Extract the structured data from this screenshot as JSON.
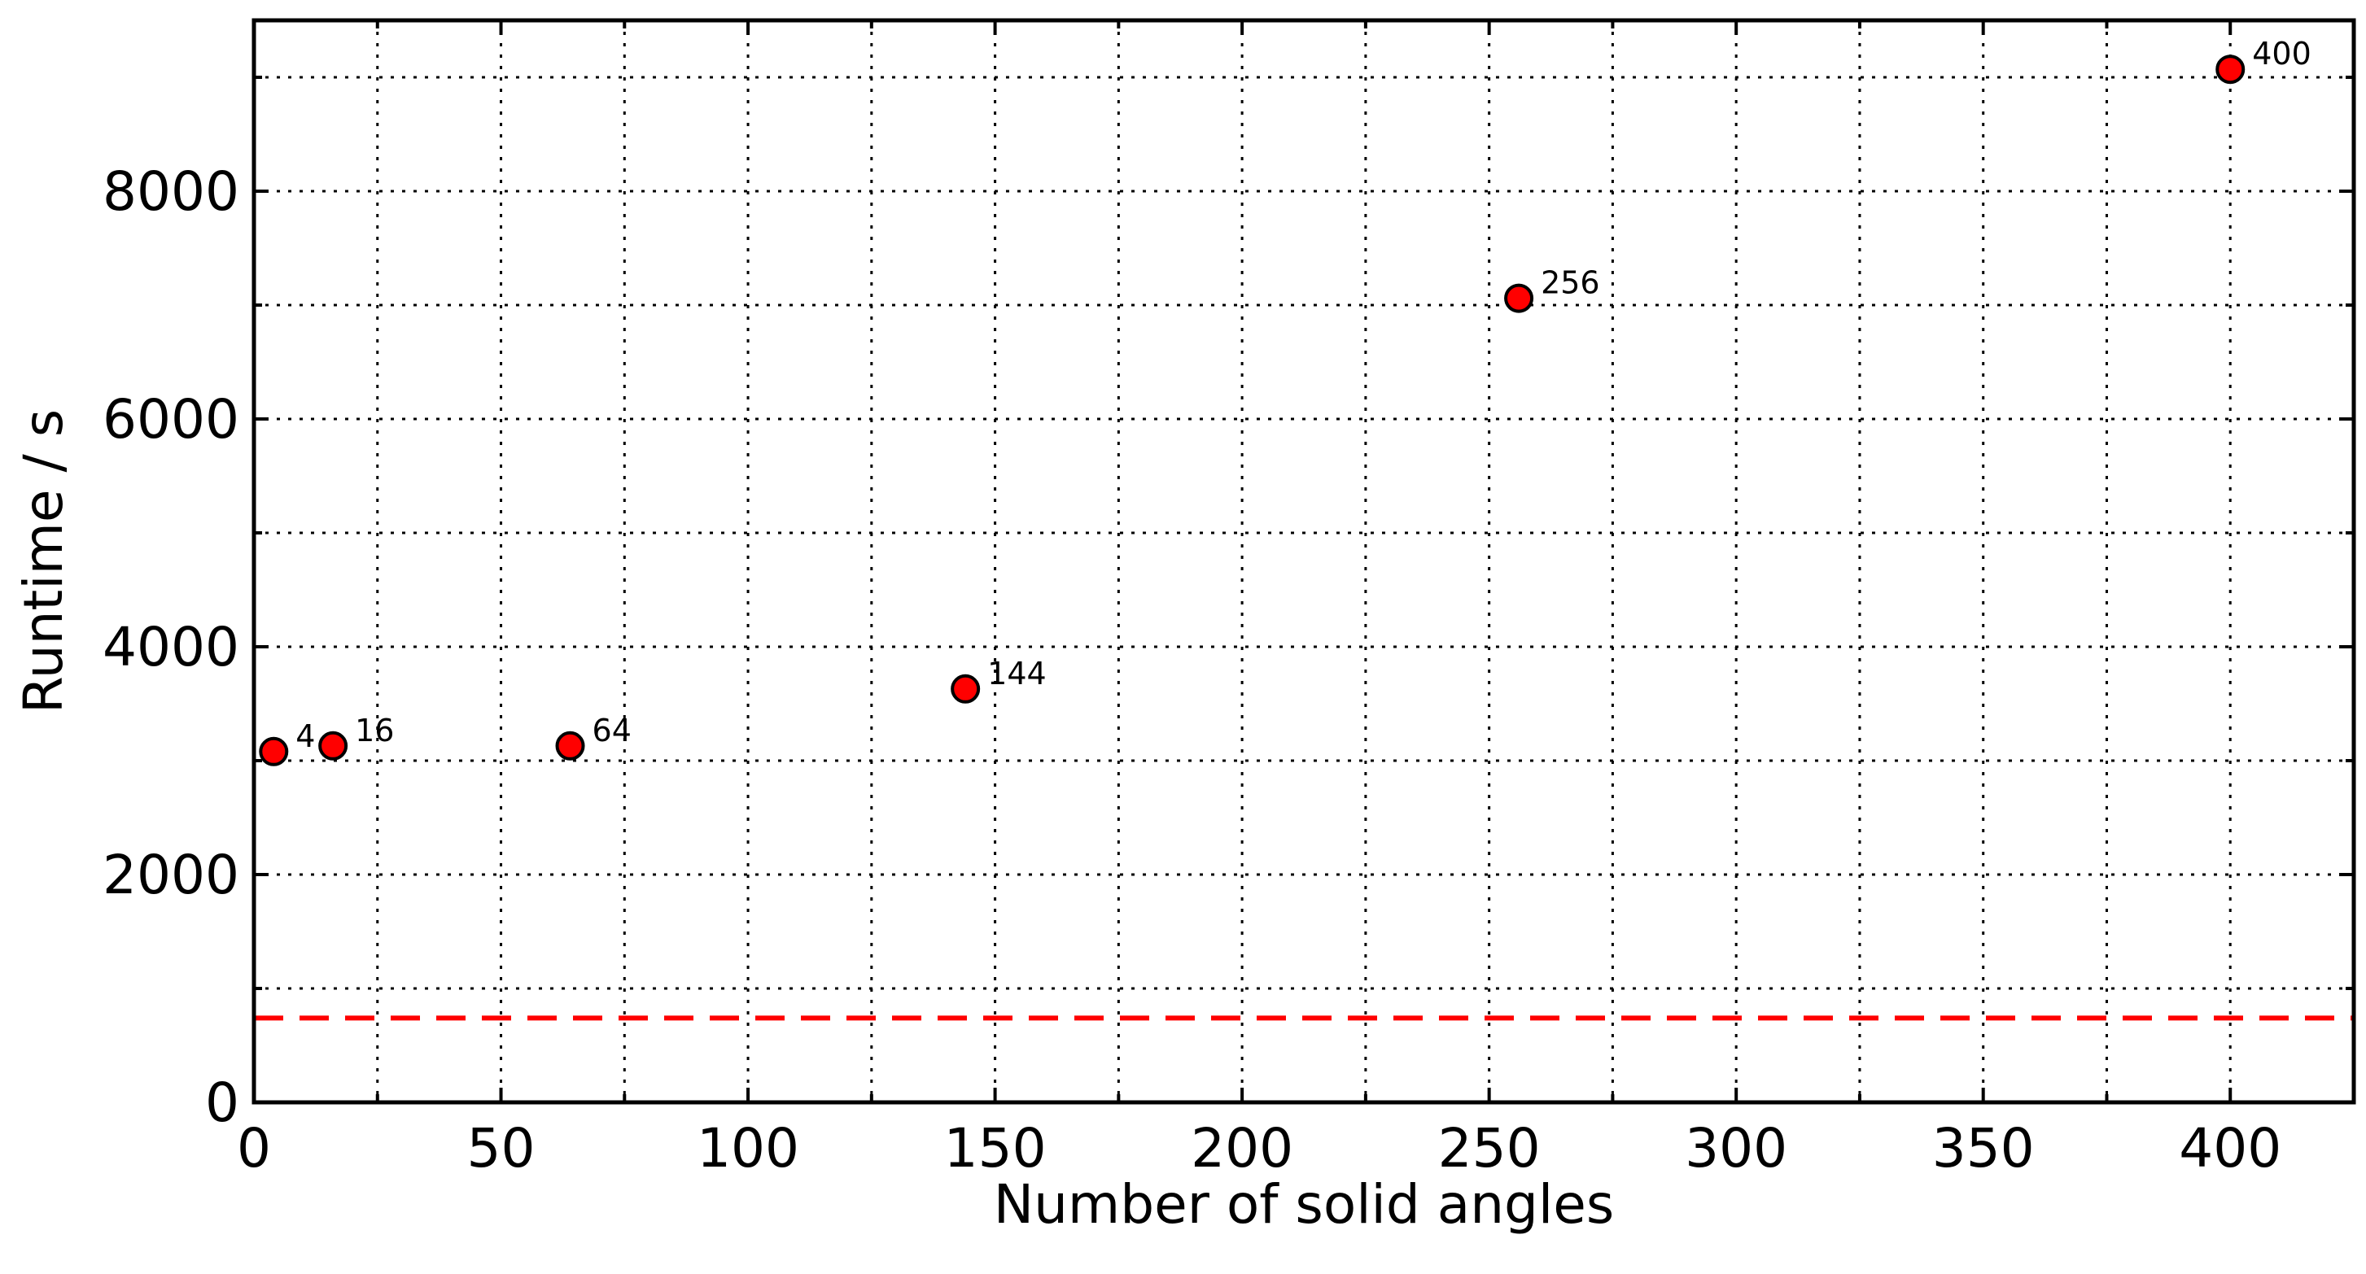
{
  "chart_data": {
    "type": "scatter",
    "title": "",
    "xlabel": "Number of solid angles",
    "ylabel": "Runtime / s",
    "xlim": [
      0,
      425
    ],
    "ylim": [
      0,
      9500
    ],
    "x_major_ticks": [
      0,
      50,
      100,
      150,
      200,
      250,
      300,
      350,
      400
    ],
    "x_tick_labels": [
      "0",
      "50",
      "100",
      "150",
      "200",
      "250",
      "300",
      "350",
      "400"
    ],
    "x_grid": [
      25,
      50,
      75,
      100,
      125,
      150,
      175,
      200,
      225,
      250,
      275,
      300,
      325,
      350,
      375,
      400
    ],
    "y_major_ticks": [
      0,
      2000,
      4000,
      6000,
      8000
    ],
    "y_tick_labels": [
      "0",
      "2000",
      "4000",
      "6000",
      "8000"
    ],
    "y_grid": [
      1000,
      2000,
      3000,
      4000,
      5000,
      6000,
      7000,
      8000,
      9000
    ],
    "grid": true,
    "grid_style": "dotted",
    "series": [
      {
        "marker_color": "#ff0000",
        "points": [
          {
            "x": 4,
            "y": 3080,
            "label": "4"
          },
          {
            "x": 16,
            "y": 3130,
            "label": "16"
          },
          {
            "x": 64,
            "y": 3130,
            "label": "64"
          },
          {
            "x": 144,
            "y": 3630,
            "label": "144"
          },
          {
            "x": 256,
            "y": 7060,
            "label": "256"
          },
          {
            "x": 400,
            "y": 9070,
            "label": "400"
          }
        ]
      }
    ],
    "reference_line": {
      "orientation": "horizontal",
      "y": 740,
      "style": "dashed",
      "color": "#ff0000"
    }
  }
}
